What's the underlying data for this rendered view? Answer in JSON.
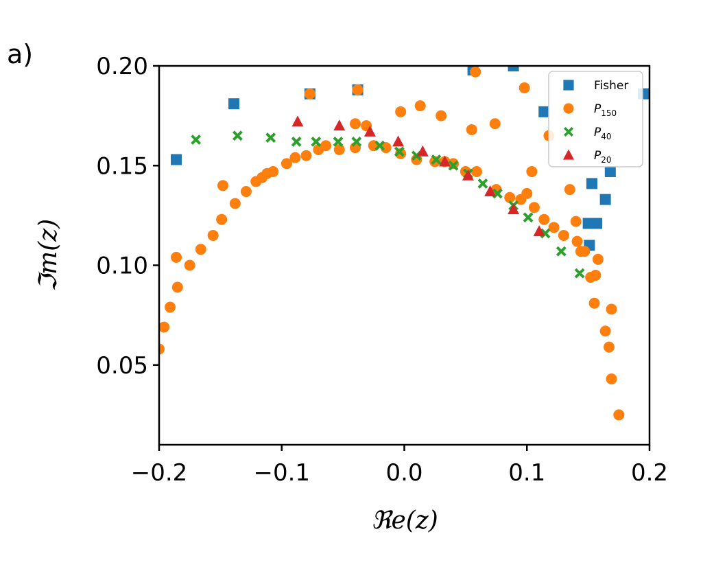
{
  "chart_data": {
    "type": "scatter",
    "panel_label": "a)",
    "xlabel": "ℜe(z)",
    "ylabel": "ℑm(z)",
    "xlim": [
      -0.2,
      0.2
    ],
    "ylim": [
      0.01,
      0.2
    ],
    "xticks": [
      -0.2,
      -0.1,
      0.0,
      0.1,
      0.2
    ],
    "xtick_labels": [
      "−0.2",
      "−0.1",
      "0.0",
      "0.1",
      "0.2"
    ],
    "yticks": [
      0.05,
      0.1,
      0.15,
      0.2
    ],
    "ytick_labels": [
      "0.05",
      "0.10",
      "0.15",
      "0.20"
    ],
    "grid": false,
    "legend_position": "top-right",
    "series": [
      {
        "name": "Fisher",
        "marker": "square",
        "color": "#1f77b4",
        "points": [
          [
            -0.186,
            0.153
          ],
          [
            -0.139,
            0.181
          ],
          [
            -0.077,
            0.186
          ],
          [
            -0.038,
            0.188
          ],
          [
            0.056,
            0.198
          ],
          [
            0.089,
            0.2
          ],
          [
            0.114,
            0.177
          ],
          [
            0.195,
            0.186
          ],
          [
            0.153,
            0.141
          ],
          [
            0.168,
            0.147
          ],
          [
            0.164,
            0.133
          ],
          [
            0.15,
            0.121
          ],
          [
            0.157,
            0.121
          ],
          [
            0.151,
            0.11
          ]
        ]
      },
      {
        "name": "P150",
        "label_main": "P",
        "label_sub": "150",
        "marker": "circle",
        "color": "#ff7f0e",
        "points": [
          [
            -0.2,
            0.058
          ],
          [
            -0.196,
            0.069
          ],
          [
            -0.191,
            0.079
          ],
          [
            -0.185,
            0.089
          ],
          [
            -0.186,
            0.104
          ],
          [
            -0.175,
            0.1
          ],
          [
            -0.166,
            0.108
          ],
          [
            -0.156,
            0.115
          ],
          [
            -0.149,
            0.123
          ],
          [
            -0.148,
            0.14
          ],
          [
            -0.138,
            0.131
          ],
          [
            -0.129,
            0.137
          ],
          [
            -0.121,
            0.142
          ],
          [
            -0.116,
            0.144
          ],
          [
            -0.112,
            0.146
          ],
          [
            -0.107,
            0.147
          ],
          [
            -0.096,
            0.151
          ],
          [
            -0.089,
            0.154
          ],
          [
            -0.08,
            0.155
          ],
          [
            -0.077,
            0.186
          ],
          [
            -0.07,
            0.158
          ],
          [
            -0.064,
            0.16
          ],
          [
            -0.053,
            0.158
          ],
          [
            -0.04,
            0.159
          ],
          [
            -0.038,
            0.188
          ],
          [
            -0.04,
            0.171
          ],
          [
            -0.031,
            0.17
          ],
          [
            -0.025,
            0.16
          ],
          [
            -0.015,
            0.159
          ],
          [
            -0.003,
            0.156
          ],
          [
            -0.003,
            0.177
          ],
          [
            0.01,
            0.153
          ],
          [
            0.013,
            0.18
          ],
          [
            0.025,
            0.152
          ],
          [
            0.03,
            0.175
          ],
          [
            0.033,
            0.152
          ],
          [
            0.04,
            0.151
          ],
          [
            0.05,
            0.147
          ],
          [
            0.055,
            0.168
          ],
          [
            0.059,
            0.147
          ],
          [
            0.058,
            0.197
          ],
          [
            0.074,
            0.171
          ],
          [
            0.075,
            0.138
          ],
          [
            0.086,
            0.134
          ],
          [
            0.095,
            0.133
          ],
          [
            0.1,
            0.136
          ],
          [
            0.104,
            0.147
          ],
          [
            0.098,
            0.189
          ],
          [
            0.106,
            0.129
          ],
          [
            0.114,
            0.123
          ],
          [
            0.122,
            0.119
          ],
          [
            0.13,
            0.115
          ],
          [
            0.118,
            0.165
          ],
          [
            0.135,
            0.138
          ],
          [
            0.14,
            0.122
          ],
          [
            0.141,
            0.112
          ],
          [
            0.144,
            0.107
          ],
          [
            0.147,
            0.107
          ],
          [
            0.152,
            0.094
          ],
          [
            0.156,
            0.095
          ],
          [
            0.158,
            0.103
          ],
          [
            0.155,
            0.081
          ],
          [
            0.164,
            0.067
          ],
          [
            0.167,
            0.059
          ],
          [
            0.169,
            0.078
          ],
          [
            0.169,
            0.043
          ],
          [
            0.175,
            0.025
          ]
        ]
      },
      {
        "name": "P40",
        "label_main": "P",
        "label_sub": "40",
        "marker": "x",
        "color": "#2ca02c",
        "points": [
          [
            -0.17,
            0.163
          ],
          [
            -0.136,
            0.165
          ],
          [
            -0.109,
            0.164
          ],
          [
            -0.088,
            0.162
          ],
          [
            -0.072,
            0.162
          ],
          [
            -0.054,
            0.162
          ],
          [
            -0.039,
            0.162
          ],
          [
            -0.02,
            0.16
          ],
          [
            -0.004,
            0.157
          ],
          [
            0.01,
            0.155
          ],
          [
            0.026,
            0.153
          ],
          [
            0.04,
            0.15
          ],
          [
            0.052,
            0.146
          ],
          [
            0.064,
            0.141
          ],
          [
            0.076,
            0.136
          ],
          [
            0.089,
            0.13
          ],
          [
            0.101,
            0.124
          ],
          [
            0.115,
            0.116
          ],
          [
            0.128,
            0.107
          ],
          [
            0.143,
            0.096
          ]
        ]
      },
      {
        "name": "P20",
        "label_main": "P",
        "label_sub": "20",
        "marker": "triangle",
        "color": "#d62728",
        "points": [
          [
            -0.087,
            0.172
          ],
          [
            -0.053,
            0.17
          ],
          [
            -0.028,
            0.167
          ],
          [
            -0.005,
            0.162
          ],
          [
            0.015,
            0.157
          ],
          [
            0.033,
            0.152
          ],
          [
            0.052,
            0.145
          ],
          [
            0.07,
            0.137
          ],
          [
            0.089,
            0.128
          ],
          [
            0.11,
            0.117
          ]
        ]
      }
    ]
  }
}
